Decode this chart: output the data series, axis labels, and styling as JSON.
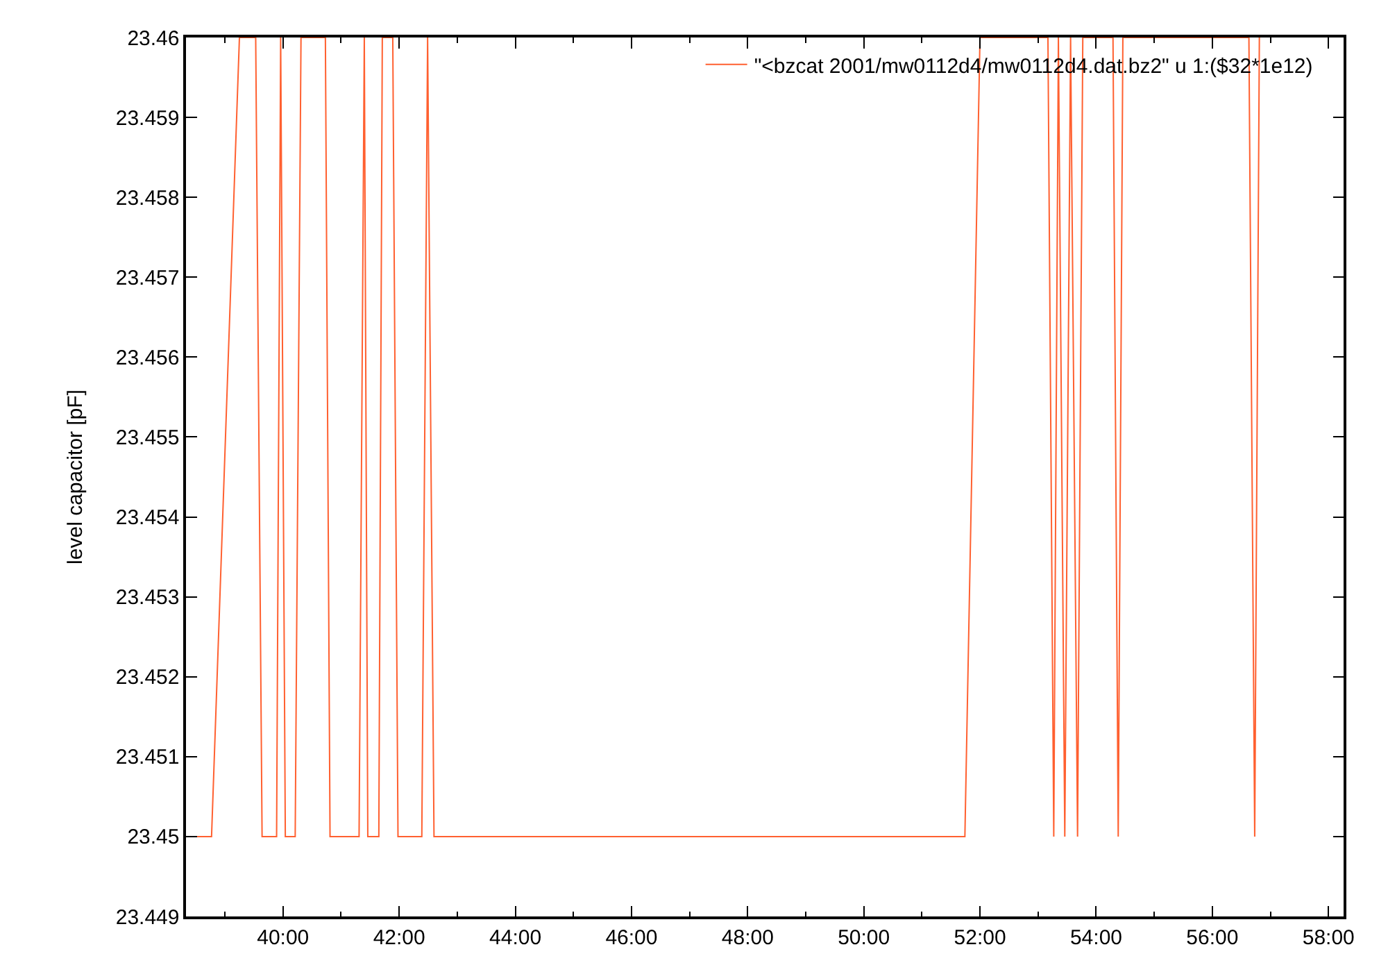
{
  "chart_data": {
    "type": "line",
    "ylabel": "level capacitor [pF]",
    "series": [
      {
        "name": "\"<bzcat 2001/mw0112d4/mw0112d4.dat.bz2\" u 1:($32*1e12)",
        "color": "#ff6030",
        "x": [
          38.33,
          38.77,
          39.25,
          39.53,
          39.64,
          39.89,
          39.96,
          40.04,
          40.21,
          40.31,
          40.73,
          40.81,
          41.31,
          41.4,
          41.46,
          41.65,
          41.71,
          41.89,
          41.98,
          42.39,
          42.49,
          42.6,
          51.74,
          52.0,
          53.17,
          53.27,
          53.35,
          53.46,
          53.56,
          53.68,
          53.77,
          54.29,
          54.38,
          54.46,
          56.63,
          56.73,
          56.81
        ],
        "values": [
          23.45,
          23.45,
          23.46,
          23.46,
          23.45,
          23.45,
          23.46,
          23.45,
          23.45,
          23.46,
          23.46,
          23.45,
          23.45,
          23.46,
          23.45,
          23.45,
          23.46,
          23.46,
          23.45,
          23.45,
          23.46,
          23.45,
          23.45,
          23.46,
          23.46,
          23.45,
          23.46,
          23.45,
          23.46,
          23.45,
          23.46,
          23.46,
          23.45,
          23.46,
          23.46,
          23.45,
          23.46
        ]
      }
    ],
    "xlim": [
      38.33,
      58.26
    ],
    "xticks": [
      {
        "value": 40,
        "label": "40:00"
      },
      {
        "value": 42,
        "label": "42:00"
      },
      {
        "value": 44,
        "label": "44:00"
      },
      {
        "value": 46,
        "label": "46:00"
      },
      {
        "value": 48,
        "label": "48:00"
      },
      {
        "value": 50,
        "label": "50:00"
      },
      {
        "value": 52,
        "label": "52:00"
      },
      {
        "value": 54,
        "label": "54:00"
      },
      {
        "value": 56,
        "label": "56:00"
      },
      {
        "value": 58,
        "label": "58:00"
      }
    ],
    "ylim": [
      23.449,
      23.46
    ],
    "yticks": [
      23.449,
      23.45,
      23.451,
      23.452,
      23.453,
      23.454,
      23.455,
      23.456,
      23.457,
      23.458,
      23.459,
      23.46
    ],
    "legend": "top right",
    "marker": "none",
    "line_style": "solid"
  }
}
